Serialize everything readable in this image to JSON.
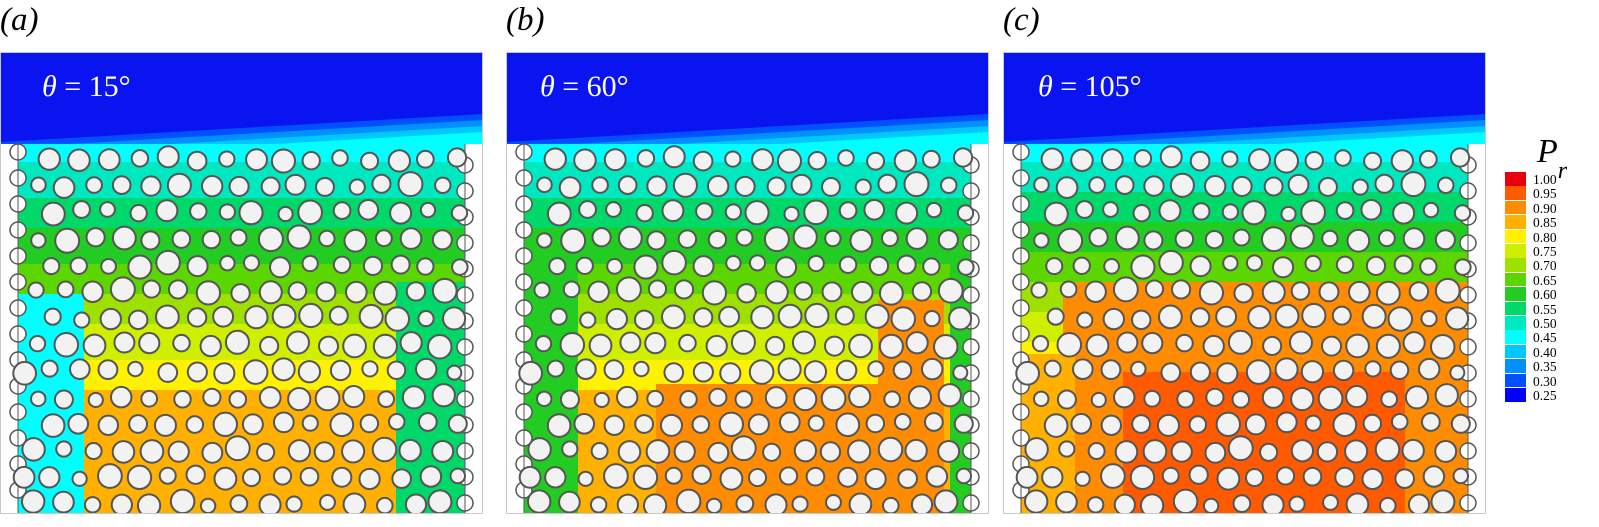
{
  "panels": [
    {
      "letter": "a",
      "angle": "θ = 15°",
      "angle_symbol": "θ",
      "angle_value": "= 15°"
    },
    {
      "letter": "b",
      "angle": "θ = 60°",
      "angle_symbol": "θ",
      "angle_value": "= 60°"
    },
    {
      "letter": "c",
      "angle": "θ = 105°",
      "angle_symbol": "θ",
      "angle_value": "= 105°"
    }
  ],
  "colorbar": {
    "title_main": "P",
    "title_sub": "r",
    "ticks": [
      "1.00",
      "0.95",
      "0.90",
      "0.85",
      "0.80",
      "0.75",
      "0.70",
      "0.65",
      "0.60",
      "0.55",
      "0.50",
      "0.45",
      "0.40",
      "0.35",
      "0.30",
      "0.25"
    ],
    "colors": [
      "#e8000a",
      "#ff5a00",
      "#ff8c00",
      "#ffb000",
      "#fff200",
      "#cfee00",
      "#9ee000",
      "#5cd600",
      "#22cc22",
      "#00d86a",
      "#00e8c0",
      "#00ffff",
      "#00c8ff",
      "#0090ff",
      "#0050ff",
      "#0000ff"
    ]
  },
  "colors": {
    "fluid_top": "#0a14f0",
    "grain_fill": "#f2f2f2",
    "grain_edge": "#555555",
    "interface": "#6b5a55"
  }
}
